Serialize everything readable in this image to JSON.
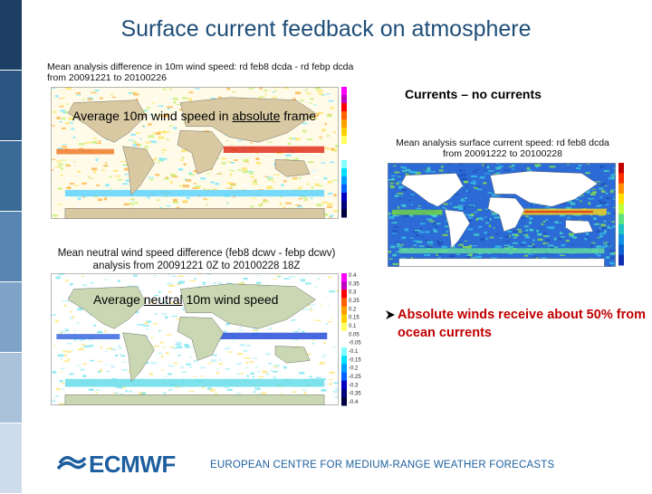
{
  "title": "Surface current feedback on atmosphere",
  "maps": [
    {
      "title": [
        "Mean analysis difference in 10m wind speed: rd feb8 dcda - rd febp dcda",
        "from 20091221 to 20100226"
      ],
      "caption": [
        "Average 10m wind speed in ",
        "absolute",
        " frame"
      ]
    },
    {
      "title": [
        "Mean neutral wind speed difference (feb8 dcwv - febp dcwv)",
        "analysis from 20091221 0Z to 20100228 18Z"
      ],
      "caption": [
        "Average ",
        "neutral",
        " 10m wind speed"
      ],
      "colorbar": [
        "0.4",
        "0.35",
        "0.3",
        "0.25",
        "0.2",
        "0.15",
        "0.1",
        "0.05",
        "-0.05",
        "-0.1",
        "-0.15",
        "-0.2",
        "-0.25",
        "-0.3",
        "-0.35",
        "-0.4"
      ]
    },
    {
      "title": [
        "Mean analysis surface current speed: rd feb8 dcda",
        "from 20091222 to 20100228"
      ]
    }
  ],
  "label": "Currents – no currents",
  "bullet": "Absolute winds receive about 50% from ocean currents",
  "footer": {
    "logo": "ECMWF",
    "name": "EUROPEAN CENTRE FOR MEDIUM-RANGE WEATHER FORECASTS"
  }
}
